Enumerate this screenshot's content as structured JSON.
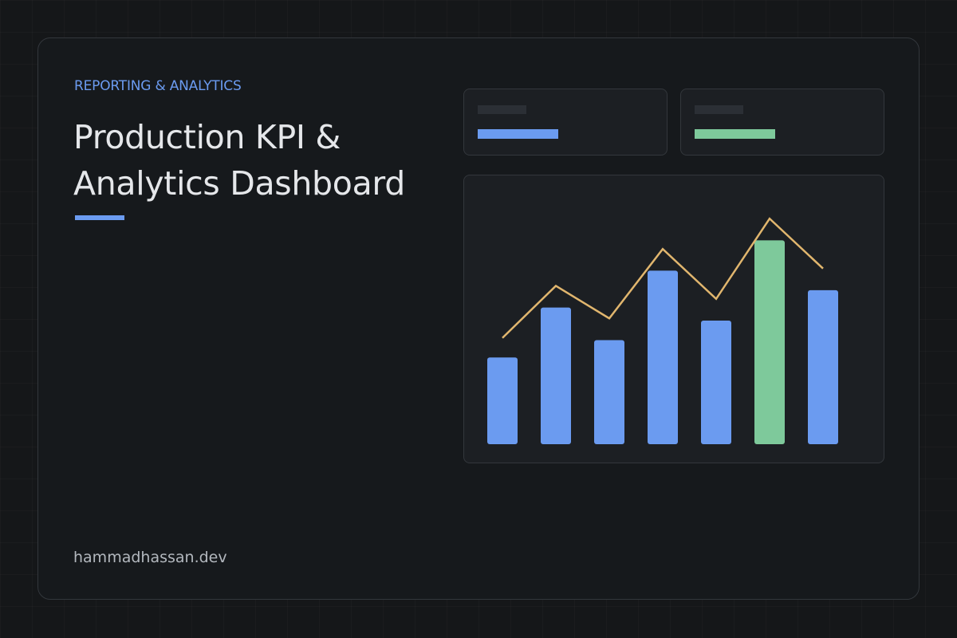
{
  "header": {
    "eyebrow": "REPORTING & ANALYTICS",
    "title_line1": "Production KPI &",
    "title_line2": "Analytics Dashboard"
  },
  "footer": {
    "site": "hammadhassan.dev"
  },
  "colors": {
    "accent_blue": "#6b9bf0",
    "accent_green": "#7ec99b",
    "line_gold": "#e1b66e",
    "title_text": "#e5e7ea",
    "background": "#151719",
    "card": "#16191c"
  },
  "kpi_cards": [
    {
      "bar_color": "#6b9bf0"
    },
    {
      "bar_color": "#7ec99b"
    }
  ],
  "chart_data": {
    "type": "bar",
    "categories": [
      "",
      "",
      "",
      "",
      "",
      "",
      ""
    ],
    "bars": [
      0.4,
      0.63,
      0.48,
      0.8,
      0.57,
      0.94,
      0.71
    ],
    "highlight_index": 5,
    "line": [
      0.49,
      0.73,
      0.58,
      0.9,
      0.67,
      1.04,
      0.81
    ],
    "ylim": [
      0,
      1.1
    ],
    "grid": false,
    "title": "",
    "xlabel": "",
    "ylabel": ""
  }
}
